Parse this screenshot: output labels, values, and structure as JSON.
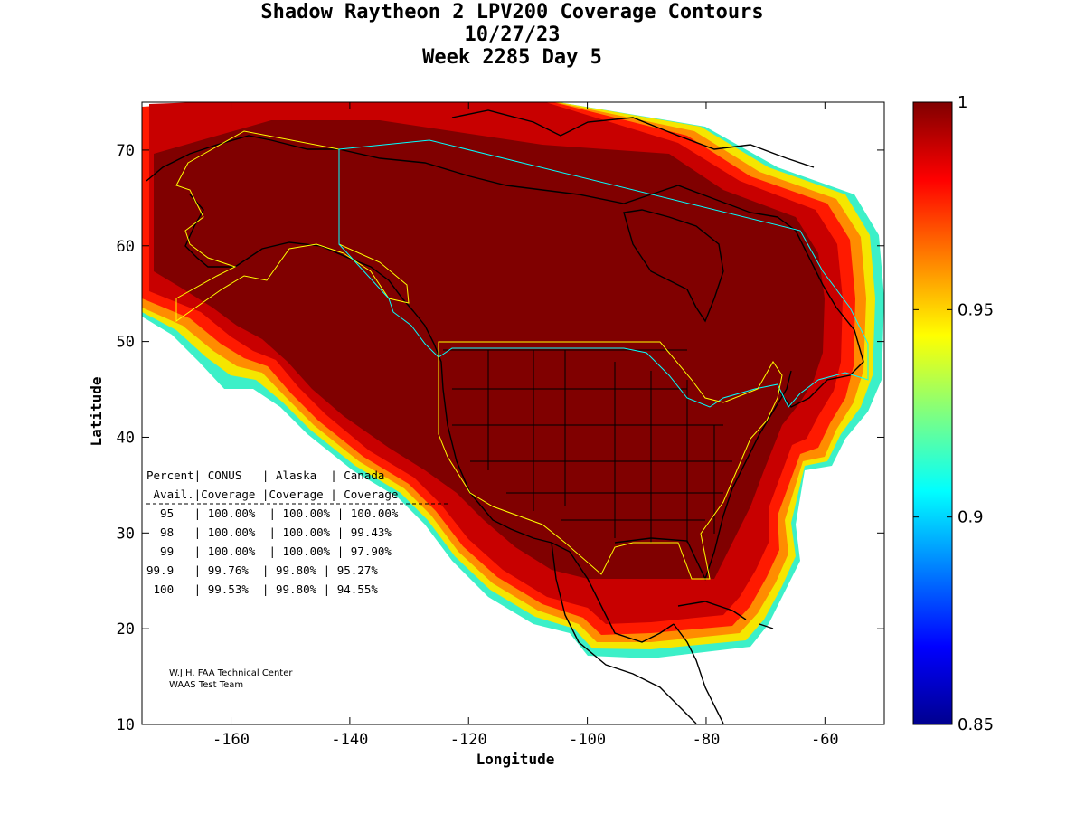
{
  "title": {
    "line1": "Shadow Raytheon 2 LPV200 Coverage Contours",
    "line2": "10/27/23",
    "line3": "Week 2285 Day 5"
  },
  "axes": {
    "xlabel": "Longitude",
    "ylabel": "Latitude",
    "xlim": [
      -175,
      -50
    ],
    "ylim": [
      10,
      75
    ],
    "xticks": [
      -160,
      -140,
      -120,
      -100,
      -80,
      -60
    ],
    "yticks": [
      10,
      20,
      30,
      40,
      50,
      60,
      70
    ],
    "xtick_labels": [
      "-160",
      "-140",
      "-120",
      "-100",
      "-80",
      "-60"
    ],
    "ytick_labels": [
      "10",
      "20",
      "30",
      "40",
      "50",
      "60",
      "70"
    ]
  },
  "colorbar": {
    "range": [
      0.85,
      1
    ],
    "ticks": [
      "1",
      "0.95",
      "0.9",
      "0.85"
    ],
    "colormap": "jet"
  },
  "table": {
    "header1": "Percent| CONUS   | Alaska  | Canada",
    "header2": " Avail.|Coverage |Coverage | Coverage",
    "rows": [
      "  95   | 100.00%  | 100.00% | 100.00%",
      "  98   | 100.00%  | 100.00% | 99.43%",
      "  99   | 100.00%  | 100.00% | 97.90%",
      "99.9   | 99.76%  | 99.80% | 95.27%",
      " 100   | 99.53%  | 99.80% | 94.55%"
    ]
  },
  "credit": {
    "line1": "W.J.H. FAA Technical Center",
    "line2": "WAAS Test Team"
  },
  "colors": {
    "core": "#800000",
    "boundary_yellow": "#ffff00",
    "boundary_cyan": "#00ffff",
    "coast": "#000000"
  }
}
